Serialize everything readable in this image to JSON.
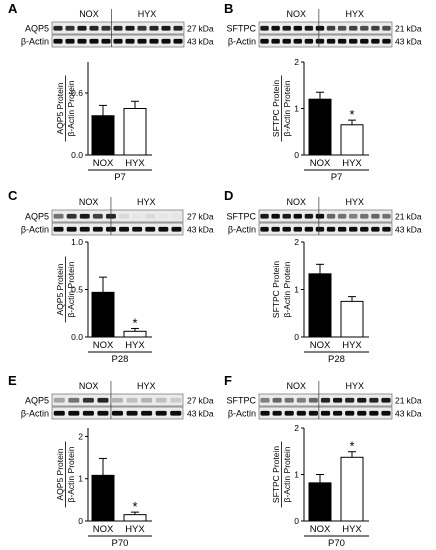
{
  "kda_unit": "kDa",
  "panels": [
    {
      "letter": "A",
      "groups": [
        "NOX",
        "HYX"
      ],
      "protein": "AQP5",
      "protein_kda": "27",
      "control": "β-Actin",
      "control_kda": "43",
      "ylabel_num": "AQP5 Protein",
      "ylabel_den": "β-Actin Protein",
      "age": "P7",
      "ratio_axis": true,
      "ticks": [
        0.0,
        0.6
      ],
      "tick_labels": [
        "0.0",
        "0.6"
      ],
      "band_intensity": {
        "protein": [
          0.85,
          0.8,
          0.9,
          0.85,
          0.8,
          0.85,
          0.9,
          0.8,
          0.85,
          0.9,
          0.85
        ],
        "control": [
          0.95,
          0.95,
          0.95,
          0.95,
          0.95,
          0.95,
          0.95,
          0.95,
          0.95,
          0.95,
          0.95
        ]
      },
      "chart_data": {
        "type": "bar",
        "categories": [
          "NOX",
          "HYX"
        ],
        "values": [
          0.38,
          0.45
        ],
        "errors": [
          0.1,
          0.07
        ],
        "significant": [
          false,
          false
        ],
        "ylim": [
          0,
          0.9
        ],
        "xlabel": "P7",
        "ylabel": "AQP5 Protein / β-Actin Protein"
      }
    },
    {
      "letter": "B",
      "groups": [
        "NOX",
        "HYX"
      ],
      "protein": "SFTPC",
      "protein_kda": "21",
      "control": "β-Actin",
      "control_kda": "43",
      "ylabel_num": "SFTPC Protein",
      "ylabel_den": "β-Actin Protein",
      "age": "P7",
      "ratio_axis": true,
      "ticks": [
        0,
        1,
        2
      ],
      "tick_labels": [
        "0",
        "1",
        "2"
      ],
      "band_intensity": {
        "protein": [
          0.9,
          0.95,
          0.9,
          0.95,
          0.9,
          0.95,
          0.75,
          0.7,
          0.75,
          0.7,
          0.75,
          0.7
        ],
        "control": [
          0.95,
          0.95,
          0.95,
          0.95,
          0.95,
          0.95,
          0.95,
          0.95,
          0.95,
          0.95,
          0.95,
          0.95
        ]
      },
      "chart_data": {
        "type": "bar",
        "categories": [
          "NOX",
          "HYX"
        ],
        "values": [
          1.2,
          0.65
        ],
        "errors": [
          0.15,
          0.1
        ],
        "significant": [
          false,
          true
        ],
        "ylim": [
          0,
          2
        ],
        "xlabel": "P7",
        "ylabel": "SFTPC Protein / β-Actin Protein"
      }
    },
    {
      "letter": "C",
      "groups": [
        "NOX",
        "HYX"
      ],
      "protein": "AQP5",
      "protein_kda": "27",
      "control": "β-Actin",
      "control_kda": "43",
      "ylabel_num": "AQP5 Protein",
      "ylabel_den": "β-Actin Protein",
      "age": "P28",
      "ratio_axis": true,
      "ticks": [
        0.0,
        0.5,
        1.0
      ],
      "tick_labels": [
        "0.0",
        "0.5",
        "1.0"
      ],
      "band_intensity": {
        "protein": [
          0.55,
          0.8,
          0.9,
          0.75,
          0.85,
          0.15,
          0.1,
          0.15,
          0.1,
          0.1
        ],
        "control": [
          0.95,
          0.95,
          0.95,
          0.95,
          0.95,
          0.95,
          0.95,
          0.95,
          0.95,
          0.95
        ]
      },
      "chart_data": {
        "type": "bar",
        "categories": [
          "NOX",
          "HYX"
        ],
        "values": [
          0.47,
          0.06
        ],
        "errors": [
          0.16,
          0.03
        ],
        "significant": [
          false,
          true
        ],
        "ylim": [
          0,
          1.0
        ],
        "xlabel": "P28",
        "ylabel": "AQP5 Protein / β-Actin Protein"
      }
    },
    {
      "letter": "D",
      "groups": [
        "NOX",
        "HYX"
      ],
      "protein": "SFTPC",
      "protein_kda": "21",
      "control": "β-Actin",
      "control_kda": "43",
      "ylabel_num": "SFTPC Protein",
      "ylabel_den": "β-Actin Protein",
      "age": "P28",
      "ratio_axis": false,
      "ticks": [
        0,
        1,
        2
      ],
      "tick_labels": [
        "0",
        "1",
        "2"
      ],
      "band_intensity": {
        "protein": [
          0.9,
          0.95,
          0.9,
          0.95,
          0.9,
          0.95,
          0.6,
          0.55,
          0.5,
          0.55,
          0.6,
          0.55
        ],
        "control": [
          0.95,
          0.95,
          0.95,
          0.95,
          0.95,
          0.95,
          0.95,
          0.95,
          0.95,
          0.95,
          0.95,
          0.95
        ]
      },
      "chart_data": {
        "type": "bar",
        "categories": [
          "NOX",
          "HYX"
        ],
        "values": [
          1.33,
          0.75
        ],
        "errors": [
          0.2,
          0.1
        ],
        "significant": [
          false,
          false
        ],
        "ylim": [
          0,
          2
        ],
        "xlabel": "P28",
        "ylabel": "SFTPC Protein / β-Actin Protein"
      }
    },
    {
      "letter": "E",
      "groups": [
        "NOX",
        "HYX"
      ],
      "protein": "AQP5",
      "protein_kda": "27",
      "control": "β-Actin",
      "control_kda": "43",
      "ylabel_num": "AQP5 Protein",
      "ylabel_den": "β-Actin Protein",
      "age": "P70",
      "ratio_axis": true,
      "ticks": [
        0,
        1,
        2
      ],
      "tick_labels": [
        "0",
        "1",
        "2"
      ],
      "band_intensity": {
        "protein": [
          0.35,
          0.55,
          0.8,
          0.85,
          0.3,
          0.25,
          0.3,
          0.25,
          0.2
        ],
        "control": [
          0.95,
          0.95,
          0.95,
          0.95,
          0.95,
          0.95,
          0.95,
          0.95,
          0.95
        ]
      },
      "chart_data": {
        "type": "bar",
        "categories": [
          "NOX",
          "HYX"
        ],
        "values": [
          1.08,
          0.15
        ],
        "errors": [
          0.4,
          0.06
        ],
        "significant": [
          false,
          true
        ],
        "ylim": [
          0,
          2.2
        ],
        "xlabel": "P70",
        "ylabel": "AQP5 Protein / β-Actin Protein"
      }
    },
    {
      "letter": "F",
      "groups": [
        "NOX",
        "HYX"
      ],
      "protein": "SFTPC",
      "protein_kda": "21",
      "control": "β-Actin",
      "control_kda": "43",
      "ylabel_num": "SFTPC Protein",
      "ylabel_den": "β-Actin Protein",
      "age": "P70",
      "ratio_axis": true,
      "ticks": [
        0,
        1,
        2
      ],
      "tick_labels": [
        "0",
        "1",
        "2"
      ],
      "band_intensity": {
        "protein": [
          0.5,
          0.6,
          0.55,
          0.5,
          0.6,
          0.85,
          0.9,
          0.85,
          0.9,
          0.85,
          0.9
        ],
        "control": [
          0.95,
          0.95,
          0.95,
          0.95,
          0.95,
          0.95,
          0.95,
          0.95,
          0.95,
          0.95,
          0.95
        ]
      },
      "chart_data": {
        "type": "bar",
        "categories": [
          "NOX",
          "HYX"
        ],
        "values": [
          0.82,
          1.37
        ],
        "errors": [
          0.18,
          0.12
        ],
        "significant": [
          false,
          true
        ],
        "ylim": [
          0,
          2
        ],
        "xlabel": "P70",
        "ylabel": "SFTPC Protein / β-Actin Protein"
      }
    }
  ],
  "significance_mark": "*"
}
